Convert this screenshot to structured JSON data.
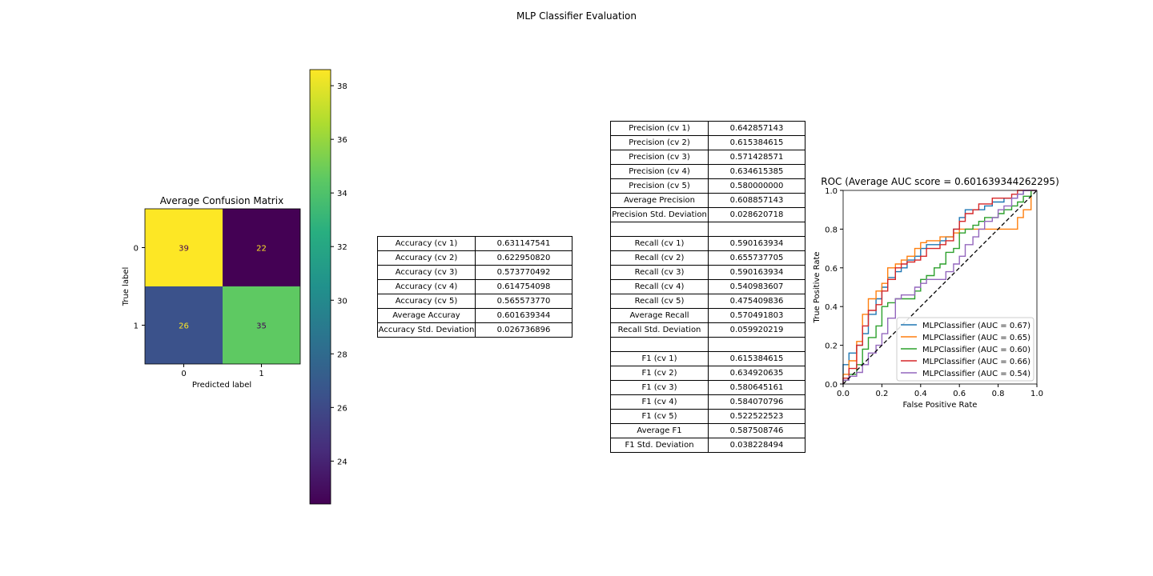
{
  "figure_title": "MLP Classifier Evaluation",
  "chart_data": [
    {
      "type": "heatmap",
      "title": "Average Confusion Matrix",
      "xlabel": "Predicted label",
      "ylabel": "True label",
      "x_categories": [
        "0",
        "1"
      ],
      "y_categories": [
        "0",
        "1"
      ],
      "values": [
        [
          39,
          22
        ],
        [
          26,
          35
        ]
      ],
      "colormap": "viridis",
      "colorbar": {
        "range": [
          22.4,
          38.6
        ],
        "ticks": [
          24,
          26,
          28,
          30,
          32,
          34,
          36,
          38
        ]
      }
    },
    {
      "type": "table",
      "rows": [
        [
          "Accuracy (cv 1)",
          "0.631147541"
        ],
        [
          "Accuracy (cv 2)",
          "0.622950820"
        ],
        [
          "Accuracy (cv 3)",
          "0.573770492"
        ],
        [
          "Accuracy (cv 4)",
          "0.614754098"
        ],
        [
          "Accuracy (cv 5)",
          "0.565573770"
        ],
        [
          "Average Accuray",
          "0.601639344"
        ],
        [
          "Accuracy Std. Deviation",
          "0.026736896"
        ]
      ]
    },
    {
      "type": "table",
      "rows": [
        [
          "Precision (cv 1)",
          "0.642857143"
        ],
        [
          "Precision (cv 2)",
          "0.615384615"
        ],
        [
          "Precision (cv 3)",
          "0.571428571"
        ],
        [
          "Precision (cv 4)",
          "0.634615385"
        ],
        [
          "Precision (cv 5)",
          "0.580000000"
        ],
        [
          "Average Precision",
          "0.608857143"
        ],
        [
          "Precision Std. Deviation",
          "0.028620718"
        ],
        [
          "",
          ""
        ],
        [
          "Recall (cv 1)",
          "0.590163934"
        ],
        [
          "Recall (cv 2)",
          "0.655737705"
        ],
        [
          "Recall (cv 3)",
          "0.590163934"
        ],
        [
          "Recall (cv 4)",
          "0.540983607"
        ],
        [
          "Recall (cv 5)",
          "0.475409836"
        ],
        [
          "Average Recall",
          "0.570491803"
        ],
        [
          "Recall Std. Deviation",
          "0.059920219"
        ],
        [
          "",
          ""
        ],
        [
          "F1 (cv 1)",
          "0.615384615"
        ],
        [
          "F1 (cv 2)",
          "0.634920635"
        ],
        [
          "F1 (cv 3)",
          "0.580645161"
        ],
        [
          "F1 (cv 4)",
          "0.584070796"
        ],
        [
          "F1 (cv 5)",
          "0.522522523"
        ],
        [
          "Average F1",
          "0.587508746"
        ],
        [
          "F1 Std. Deviation",
          "0.038228494"
        ]
      ]
    },
    {
      "type": "line",
      "title": "ROC (Average AUC score = 0.601639344262295)",
      "xlabel": "False Positive Rate",
      "ylabel": "True Positive Rate",
      "xlim": [
        0,
        1
      ],
      "ylim": [
        0,
        1
      ],
      "xticks": [
        "0.0",
        "0.2",
        "0.4",
        "0.6",
        "0.8",
        "1.0"
      ],
      "yticks": [
        "0.0",
        "0.2",
        "0.4",
        "0.6",
        "0.8",
        "1.0"
      ],
      "legend_position": "lower-right",
      "series": [
        {
          "name": "MLPClassifier (AUC = 0.67)",
          "color": "#1f77b4",
          "x": [
            0,
            0,
            0.03,
            0.03,
            0.07,
            0.07,
            0.1,
            0.1,
            0.13,
            0.13,
            0.17,
            0.17,
            0.2,
            0.2,
            0.23,
            0.23,
            0.27,
            0.27,
            0.3,
            0.3,
            0.33,
            0.33,
            0.37,
            0.37,
            0.4,
            0.4,
            0.43,
            0.43,
            0.47,
            0.47,
            0.5,
            0.5,
            0.53,
            0.53,
            0.57,
            0.57,
            0.6,
            0.6,
            0.63,
            0.63,
            0.67,
            0.67,
            0.7,
            0.7,
            0.73,
            0.73,
            0.77,
            0.77,
            0.8,
            0.8,
            0.83,
            0.83,
            0.87,
            0.87,
            0.9,
            0.9,
            0.93,
            0.93,
            0.97,
            0.97,
            1
          ],
          "y": [
            0,
            0.1,
            0.1,
            0.16,
            0.16,
            0.2,
            0.2,
            0.26,
            0.26,
            0.36,
            0.36,
            0.44,
            0.44,
            0.5,
            0.5,
            0.55,
            0.55,
            0.58,
            0.58,
            0.6,
            0.6,
            0.64,
            0.64,
            0.66,
            0.66,
            0.7,
            0.7,
            0.72,
            0.72,
            0.72,
            0.72,
            0.74,
            0.74,
            0.76,
            0.76,
            0.8,
            0.8,
            0.86,
            0.86,
            0.9,
            0.9,
            0.9,
            0.9,
            0.9,
            0.9,
            0.92,
            0.92,
            0.94,
            0.94,
            0.94,
            0.94,
            0.96,
            0.96,
            0.96,
            0.96,
            0.98,
            0.98,
            1,
            1,
            1,
            1
          ]
        },
        {
          "name": "MLPClassifier (AUC = 0.65)",
          "color": "#ff7f0e",
          "x": [
            0,
            0,
            0.03,
            0.03,
            0.07,
            0.07,
            0.1,
            0.1,
            0.13,
            0.13,
            0.17,
            0.17,
            0.2,
            0.2,
            0.23,
            0.23,
            0.27,
            0.27,
            0.3,
            0.3,
            0.33,
            0.33,
            0.37,
            0.37,
            0.4,
            0.4,
            0.43,
            0.43,
            0.47,
            0.47,
            0.5,
            0.5,
            0.53,
            0.53,
            0.57,
            0.57,
            0.6,
            0.6,
            0.63,
            0.63,
            0.67,
            0.67,
            0.7,
            0.7,
            0.73,
            0.73,
            0.77,
            0.77,
            0.8,
            0.8,
            0.83,
            0.83,
            0.87,
            0.87,
            0.9,
            0.9,
            0.93,
            0.93,
            0.97,
            0.97,
            1
          ],
          "y": [
            0,
            0.05,
            0.05,
            0.12,
            0.12,
            0.22,
            0.22,
            0.36,
            0.36,
            0.44,
            0.44,
            0.48,
            0.48,
            0.52,
            0.52,
            0.6,
            0.6,
            0.62,
            0.62,
            0.64,
            0.64,
            0.66,
            0.66,
            0.7,
            0.7,
            0.73,
            0.73,
            0.74,
            0.74,
            0.74,
            0.74,
            0.76,
            0.76,
            0.76,
            0.76,
            0.78,
            0.78,
            0.8,
            0.8,
            0.8,
            0.8,
            0.8,
            0.8,
            0.8,
            0.8,
            0.8,
            0.8,
            0.8,
            0.8,
            0.8,
            0.8,
            0.8,
            0.8,
            0.8,
            0.8,
            0.86,
            0.86,
            0.9,
            0.9,
            1,
            1
          ]
        },
        {
          "name": "MLPClassifier (AUC = 0.60)",
          "color": "#2ca02c",
          "x": [
            0,
            0,
            0.03,
            0.03,
            0.07,
            0.07,
            0.1,
            0.1,
            0.13,
            0.13,
            0.17,
            0.17,
            0.2,
            0.2,
            0.23,
            0.23,
            0.27,
            0.27,
            0.3,
            0.3,
            0.33,
            0.33,
            0.37,
            0.37,
            0.4,
            0.4,
            0.43,
            0.43,
            0.47,
            0.47,
            0.5,
            0.5,
            0.53,
            0.53,
            0.57,
            0.57,
            0.6,
            0.6,
            0.63,
            0.63,
            0.67,
            0.67,
            0.7,
            0.7,
            0.73,
            0.73,
            0.77,
            0.77,
            0.8,
            0.8,
            0.83,
            0.83,
            0.87,
            0.87,
            0.9,
            0.9,
            0.93,
            0.93,
            0.97,
            0.97,
            1
          ],
          "y": [
            0,
            0.02,
            0.02,
            0.05,
            0.05,
            0.1,
            0.1,
            0.18,
            0.18,
            0.24,
            0.24,
            0.3,
            0.3,
            0.4,
            0.4,
            0.42,
            0.42,
            0.44,
            0.44,
            0.44,
            0.44,
            0.44,
            0.44,
            0.48,
            0.48,
            0.54,
            0.54,
            0.56,
            0.56,
            0.6,
            0.6,
            0.62,
            0.62,
            0.68,
            0.68,
            0.7,
            0.7,
            0.78,
            0.78,
            0.8,
            0.8,
            0.82,
            0.82,
            0.84,
            0.84,
            0.86,
            0.86,
            0.86,
            0.86,
            0.88,
            0.88,
            0.9,
            0.9,
            0.92,
            0.92,
            0.94,
            0.94,
            0.97,
            0.97,
            1,
            1
          ]
        },
        {
          "name": "MLPClassifier (AUC = 0.66)",
          "color": "#d62728",
          "x": [
            0,
            0,
            0.03,
            0.03,
            0.07,
            0.07,
            0.1,
            0.1,
            0.13,
            0.13,
            0.17,
            0.17,
            0.2,
            0.2,
            0.23,
            0.23,
            0.27,
            0.27,
            0.3,
            0.3,
            0.33,
            0.33,
            0.37,
            0.37,
            0.4,
            0.4,
            0.43,
            0.43,
            0.47,
            0.47,
            0.5,
            0.5,
            0.53,
            0.53,
            0.57,
            0.57,
            0.6,
            0.6,
            0.63,
            0.63,
            0.67,
            0.67,
            0.7,
            0.7,
            0.73,
            0.73,
            0.77,
            0.77,
            0.8,
            0.8,
            0.83,
            0.83,
            0.87,
            0.87,
            0.9,
            0.9,
            0.93,
            0.93,
            0.97,
            0.97,
            1
          ],
          "y": [
            0,
            0.03,
            0.03,
            0.08,
            0.08,
            0.2,
            0.2,
            0.3,
            0.3,
            0.38,
            0.38,
            0.41,
            0.41,
            0.48,
            0.48,
            0.54,
            0.54,
            0.6,
            0.6,
            0.62,
            0.62,
            0.63,
            0.63,
            0.64,
            0.64,
            0.66,
            0.66,
            0.7,
            0.7,
            0.7,
            0.7,
            0.72,
            0.72,
            0.74,
            0.74,
            0.8,
            0.8,
            0.84,
            0.84,
            0.88,
            0.88,
            0.9,
            0.9,
            0.93,
            0.93,
            0.93,
            0.93,
            0.96,
            0.96,
            0.96,
            0.96,
            0.96,
            0.96,
            0.98,
            0.98,
            1,
            1,
            1,
            1,
            1,
            1
          ]
        },
        {
          "name": "MLPClassifier (AUC = 0.54)",
          "color": "#9467bd",
          "x": [
            0,
            0,
            0.03,
            0.03,
            0.07,
            0.07,
            0.1,
            0.1,
            0.13,
            0.13,
            0.17,
            0.17,
            0.2,
            0.2,
            0.23,
            0.23,
            0.27,
            0.27,
            0.3,
            0.3,
            0.33,
            0.33,
            0.37,
            0.37,
            0.4,
            0.4,
            0.43,
            0.43,
            0.47,
            0.47,
            0.5,
            0.5,
            0.53,
            0.53,
            0.57,
            0.57,
            0.6,
            0.6,
            0.63,
            0.63,
            0.67,
            0.67,
            0.7,
            0.7,
            0.73,
            0.73,
            0.77,
            0.77,
            0.8,
            0.8,
            0.83,
            0.83,
            0.87,
            0.87,
            0.9,
            0.9,
            0.93,
            0.93,
            0.97,
            0.97,
            1
          ],
          "y": [
            0,
            0.02,
            0.02,
            0.04,
            0.04,
            0.06,
            0.06,
            0.1,
            0.1,
            0.16,
            0.16,
            0.2,
            0.2,
            0.26,
            0.26,
            0.34,
            0.34,
            0.44,
            0.44,
            0.46,
            0.46,
            0.46,
            0.46,
            0.5,
            0.5,
            0.52,
            0.52,
            0.54,
            0.54,
            0.54,
            0.54,
            0.54,
            0.54,
            0.58,
            0.58,
            0.62,
            0.62,
            0.66,
            0.66,
            0.72,
            0.72,
            0.76,
            0.76,
            0.8,
            0.8,
            0.84,
            0.84,
            0.86,
            0.86,
            0.9,
            0.9,
            0.92,
            0.92,
            0.96,
            0.96,
            0.98,
            0.98,
            1,
            1,
            1,
            1
          ]
        },
        {
          "name": "",
          "color": "#000000",
          "dashed": true,
          "x": [
            0,
            1
          ],
          "y": [
            0,
            1
          ]
        }
      ]
    }
  ]
}
